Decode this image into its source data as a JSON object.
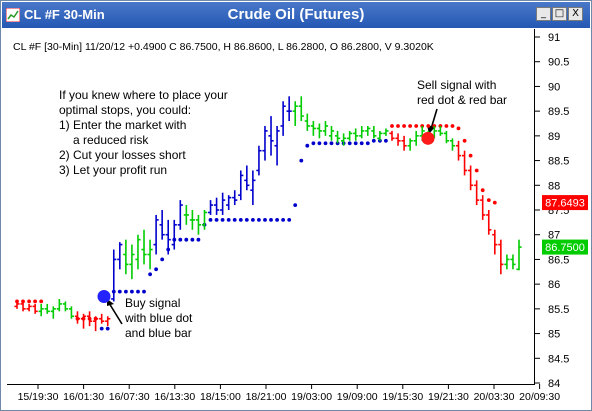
{
  "window": {
    "app_title": "CL #F 30-Min",
    "chart_title": "Crude Oil (Futures)",
    "buttons": {
      "minimize": "_",
      "maximize": "□",
      "close": "X"
    }
  },
  "info_line": "CL #F [30-Min] 11/20/12 +0.4900 C 86.7500, H 86.8600, L 86.2800, O 86.2800, V 9.3020K",
  "annotations": {
    "tips": [
      "If you knew where to place your",
      "optimal stops, you could:",
      "1) Enter the market with",
      "a reduced risk",
      "2) Cut your losses short",
      "3) Let your profit run"
    ],
    "buy": [
      "Buy signal",
      "with blue dot",
      "and blue bar"
    ],
    "sell": [
      "Sell signal with",
      "red dot & red bar"
    ]
  },
  "colors": {
    "up": "#00cc00",
    "down": "#ff0000",
    "blue": "#0000cc",
    "title_bar": "#2b5fb8"
  },
  "chart_data": {
    "type": "bar",
    "subtype": "ohlc",
    "y_axis": {
      "ticks": [
        84,
        84.5,
        85,
        85.5,
        86,
        86.5,
        87,
        87.5,
        88,
        88.5,
        89,
        89.5,
        90,
        90.5,
        91
      ],
      "range": [
        84,
        91
      ],
      "side": "right"
    },
    "x_axis": {
      "labels": [
        "15/19:30",
        "16/01:30",
        "16/07:30",
        "16/13:30",
        "18/15:00",
        "18/21:00",
        "19/03:00",
        "19/09:00",
        "19/15:30",
        "19/21:30",
        "20/03:30",
        "20/09:30"
      ]
    },
    "last_price_markers": [
      {
        "label": "87.6493",
        "value": 87.65,
        "color": "#ff0000"
      },
      {
        "label": "86.7500",
        "value": 86.75,
        "color": "#00cc00"
      }
    ],
    "signals": [
      {
        "type": "buy",
        "value": 85.75
      },
      {
        "type": "sell",
        "value": 88.95
      }
    ],
    "grid": false,
    "bars": [
      [
        85.55,
        85.65,
        85.5,
        85.6,
        "r"
      ],
      [
        85.6,
        85.65,
        85.45,
        85.5,
        "r"
      ],
      [
        85.5,
        85.6,
        85.45,
        85.55,
        "r"
      ],
      [
        85.55,
        85.6,
        85.4,
        85.45,
        "r"
      ],
      [
        85.45,
        85.6,
        85.35,
        85.5,
        "g"
      ],
      [
        85.5,
        85.6,
        85.4,
        85.45,
        "g"
      ],
      [
        85.45,
        85.55,
        85.3,
        85.5,
        "g"
      ],
      [
        85.5,
        85.7,
        85.45,
        85.6,
        "g"
      ],
      [
        85.6,
        85.65,
        85.45,
        85.5,
        "g"
      ],
      [
        85.5,
        85.55,
        85.3,
        85.35,
        "g"
      ],
      [
        85.35,
        85.45,
        85.2,
        85.3,
        "r"
      ],
      [
        85.3,
        85.4,
        85.1,
        85.35,
        "r"
      ],
      [
        85.35,
        85.45,
        85.15,
        85.25,
        "r"
      ],
      [
        85.25,
        85.35,
        85.05,
        85.3,
        "r"
      ],
      [
        85.3,
        85.4,
        85.2,
        85.25,
        "r"
      ],
      [
        85.25,
        85.35,
        85.15,
        85.3,
        "r"
      ],
      [
        85.7,
        86.7,
        85.65,
        86.5,
        "b"
      ],
      [
        86.5,
        86.85,
        86.3,
        86.8,
        "b"
      ],
      [
        86.6,
        86.9,
        86.2,
        86.4,
        "g"
      ],
      [
        86.4,
        86.8,
        86.1,
        86.6,
        "g"
      ],
      [
        86.5,
        87.0,
        86.3,
        86.9,
        "g"
      ],
      [
        86.7,
        87.1,
        86.4,
        86.6,
        "g"
      ],
      [
        86.6,
        86.9,
        86.3,
        86.7,
        "g"
      ],
      [
        86.8,
        87.4,
        86.6,
        87.3,
        "b"
      ],
      [
        87.2,
        87.5,
        86.9,
        87.0,
        "b"
      ],
      [
        87.0,
        87.3,
        86.6,
        86.9,
        "b"
      ],
      [
        86.8,
        87.3,
        86.7,
        87.2,
        "b"
      ],
      [
        87.2,
        87.7,
        87.1,
        87.6,
        "b"
      ],
      [
        87.4,
        87.6,
        87.2,
        87.4,
        "g"
      ],
      [
        87.3,
        87.5,
        87.1,
        87.3,
        "g"
      ],
      [
        87.3,
        87.4,
        87.0,
        87.2,
        "g"
      ],
      [
        87.2,
        87.5,
        87.1,
        87.45,
        "g"
      ],
      [
        87.45,
        87.7,
        87.4,
        87.6,
        "b"
      ],
      [
        87.6,
        87.75,
        87.4,
        87.5,
        "b"
      ],
      [
        87.5,
        87.85,
        87.4,
        87.7,
        "b"
      ],
      [
        87.6,
        87.8,
        87.5,
        87.75,
        "b"
      ],
      [
        87.75,
        87.9,
        87.6,
        87.7,
        "b"
      ],
      [
        87.8,
        88.3,
        87.7,
        88.2,
        "b"
      ],
      [
        88.1,
        88.4,
        87.9,
        88.0,
        "b"
      ],
      [
        87.9,
        88.3,
        87.6,
        88.1,
        "b"
      ],
      [
        88.3,
        88.8,
        88.2,
        88.7,
        "b"
      ],
      [
        88.7,
        89.2,
        88.5,
        89.1,
        "b"
      ],
      [
        89.0,
        89.4,
        88.6,
        88.9,
        "b"
      ],
      [
        88.8,
        89.2,
        88.4,
        89.1,
        "b"
      ],
      [
        89.2,
        89.7,
        89.0,
        89.6,
        "b"
      ],
      [
        89.5,
        89.8,
        89.3,
        89.5,
        "b"
      ],
      [
        89.5,
        89.7,
        89.2,
        89.6,
        "g"
      ],
      [
        89.6,
        89.8,
        89.3,
        89.4,
        "g"
      ],
      [
        89.3,
        89.45,
        89.1,
        89.2,
        "g"
      ],
      [
        89.2,
        89.3,
        89.0,
        89.15,
        "g"
      ],
      [
        89.15,
        89.25,
        88.95,
        89.1,
        "g"
      ],
      [
        89.1,
        89.3,
        89.0,
        89.2,
        "g"
      ],
      [
        89.0,
        89.2,
        88.9,
        89.1,
        "g"
      ],
      [
        89.0,
        89.1,
        88.85,
        88.95,
        "g"
      ],
      [
        88.9,
        89.05,
        88.8,
        88.95,
        "g"
      ],
      [
        88.95,
        89.1,
        88.9,
        89.05,
        "g"
      ],
      [
        89.05,
        89.15,
        88.9,
        89.0,
        "g"
      ],
      [
        89.0,
        89.2,
        88.95,
        89.1,
        "g"
      ],
      [
        89.1,
        89.2,
        89.0,
        89.15,
        "g"
      ],
      [
        89.1,
        89.2,
        88.95,
        89.0,
        "g"
      ],
      [
        88.95,
        89.1,
        88.9,
        89.05,
        "g"
      ],
      [
        89.05,
        89.15,
        89.0,
        89.1,
        "g"
      ],
      [
        89.05,
        89.1,
        88.9,
        88.95,
        "r"
      ],
      [
        88.95,
        89.05,
        88.8,
        88.9,
        "r"
      ],
      [
        88.9,
        89.0,
        88.7,
        88.8,
        "r"
      ],
      [
        88.8,
        88.95,
        88.7,
        88.9,
        "g"
      ],
      [
        88.9,
        89.1,
        88.8,
        89.0,
        "g"
      ],
      [
        89.0,
        89.2,
        88.9,
        89.1,
        "g"
      ],
      [
        89.0,
        89.1,
        88.9,
        88.95,
        "g"
      ],
      [
        89.0,
        89.2,
        88.95,
        89.1,
        "g"
      ],
      [
        89.1,
        89.2,
        89.0,
        89.05,
        "g"
      ],
      [
        89.05,
        89.1,
        88.85,
        88.9,
        "g"
      ],
      [
        88.9,
        88.95,
        88.7,
        88.8,
        "g"
      ],
      [
        88.8,
        88.9,
        88.5,
        88.6,
        "r"
      ],
      [
        88.6,
        88.7,
        88.2,
        88.3,
        "r"
      ],
      [
        88.3,
        88.4,
        87.9,
        88.0,
        "r"
      ],
      [
        88.0,
        88.1,
        87.6,
        87.7,
        "r"
      ],
      [
        87.7,
        87.8,
        87.3,
        87.4,
        "r"
      ],
      [
        87.4,
        87.5,
        87.0,
        87.1,
        "r"
      ],
      [
        87.0,
        87.1,
        86.6,
        86.8,
        "r"
      ],
      [
        86.8,
        86.9,
        86.2,
        86.4,
        "r"
      ],
      [
        86.4,
        86.6,
        86.3,
        86.5,
        "g"
      ],
      [
        86.5,
        86.6,
        86.3,
        86.4,
        "g"
      ],
      [
        86.3,
        86.9,
        86.28,
        86.75,
        "g"
      ]
    ],
    "stop_dots": [
      [
        85.65,
        "r"
      ],
      [
        85.65,
        "r"
      ],
      [
        85.65,
        "r"
      ],
      [
        85.65,
        "r"
      ],
      [
        85.65,
        "r"
      ],
      null,
      null,
      null,
      null,
      null,
      [
        85.3,
        "r"
      ],
      [
        85.3,
        "r"
      ],
      [
        85.3,
        "r"
      ],
      [
        85.3,
        "r"
      ],
      [
        85.1,
        "b"
      ],
      [
        85.1,
        "b"
      ],
      [
        85.85,
        "b"
      ],
      [
        85.85,
        "b"
      ],
      [
        85.85,
        "b"
      ],
      [
        85.85,
        "b"
      ],
      [
        85.85,
        "b"
      ],
      [
        85.85,
        "b"
      ],
      [
        86.2,
        "b"
      ],
      [
        86.3,
        "b"
      ],
      [
        86.5,
        "b"
      ],
      [
        86.7,
        "b"
      ],
      [
        86.9,
        "b"
      ],
      [
        86.9,
        "b"
      ],
      [
        86.9,
        "b"
      ],
      [
        86.9,
        "b"
      ],
      [
        86.9,
        "b"
      ],
      [
        87.2,
        "b"
      ],
      [
        87.3,
        "b"
      ],
      [
        87.3,
        "b"
      ],
      [
        87.3,
        "b"
      ],
      [
        87.3,
        "b"
      ],
      [
        87.3,
        "b"
      ],
      [
        87.3,
        "b"
      ],
      [
        87.3,
        "b"
      ],
      [
        87.3,
        "b"
      ],
      [
        87.3,
        "b"
      ],
      [
        87.3,
        "b"
      ],
      [
        87.3,
        "b"
      ],
      [
        87.3,
        "b"
      ],
      [
        87.3,
        "b"
      ],
      [
        87.3,
        "b"
      ],
      [
        87.6,
        "b"
      ],
      [
        88.5,
        "b"
      ],
      [
        88.8,
        "b"
      ],
      [
        88.85,
        "b"
      ],
      [
        88.85,
        "b"
      ],
      [
        88.85,
        "b"
      ],
      [
        88.85,
        "b"
      ],
      [
        88.85,
        "b"
      ],
      [
        88.85,
        "b"
      ],
      [
        88.85,
        "b"
      ],
      [
        88.85,
        "b"
      ],
      [
        88.85,
        "b"
      ],
      [
        88.85,
        "b"
      ],
      [
        88.9,
        "b"
      ],
      [
        88.9,
        "b"
      ],
      [
        88.9,
        "b"
      ],
      [
        89.2,
        "r"
      ],
      [
        89.2,
        "r"
      ],
      [
        89.2,
        "r"
      ],
      [
        89.2,
        "r"
      ],
      [
        89.2,
        "r"
      ],
      [
        89.2,
        "r"
      ],
      [
        89.2,
        "r"
      ],
      [
        89.2,
        "r"
      ],
      [
        89.2,
        "r"
      ],
      [
        89.2,
        "r"
      ],
      [
        89.2,
        "r"
      ],
      [
        89.15,
        "r"
      ],
      [
        88.9,
        "r"
      ],
      [
        88.6,
        "r"
      ],
      [
        88.3,
        "r"
      ],
      [
        87.9,
        "r"
      ],
      [
        87.7,
        "r"
      ],
      [
        87.65,
        "r"
      ],
      null,
      null,
      null,
      null
    ]
  }
}
